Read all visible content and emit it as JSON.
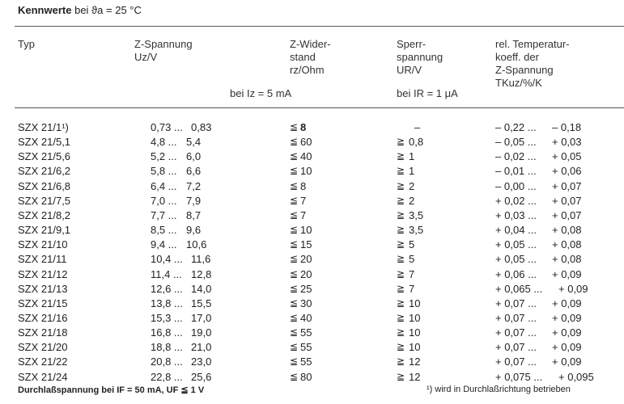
{
  "title": {
    "bold": "Kennwerte",
    "rest": "bei ϑa = 25 °C"
  },
  "headers": {
    "typ": "Typ",
    "uz": [
      "Z-Spannung",
      "Uz/V"
    ],
    "rz": [
      "Z-Wider-",
      "stand",
      "rz/Ohm"
    ],
    "ur": [
      "Sperr-",
      "spannung",
      "UR/V"
    ],
    "tk": [
      "rel. Temperatur-",
      "koeff. der",
      "Z-Spannung",
      "TKuz/%/K"
    ],
    "cond_iz": "bei Iz = 5 mA",
    "cond_ir": "bei IR = 1 μA"
  },
  "rows": [
    {
      "typ": "SZX 21/1¹)",
      "uz_min": "0,73 ...",
      "uz_max": "0,83",
      "rz_op": "≦",
      "rz": "8",
      "ur_op": "",
      "ur": "–",
      "tk_min": "– 0,22 ...",
      "tk_max": "– 0,18"
    },
    {
      "typ": "SZX 21/5,1",
      "uz_min": "4,8 ...",
      "uz_max": "5,4",
      "rz_op": "≦",
      "rz": "60",
      "ur_op": "≧",
      "ur": "0,8",
      "tk_min": "– 0,05 ...",
      "tk_max": "+ 0,03"
    },
    {
      "typ": "SZX 21/5,6",
      "uz_min": "5,2 ...",
      "uz_max": "6,0",
      "rz_op": "≦",
      "rz": "40",
      "ur_op": "≧",
      "ur": "1",
      "tk_min": "– 0,02 ...",
      "tk_max": "+ 0,05"
    },
    {
      "typ": "SZX 21/6,2",
      "uz_min": "5,8 ...",
      "uz_max": "6,6",
      "rz_op": "≦",
      "rz": "10",
      "ur_op": "≧",
      "ur": "1",
      "tk_min": "– 0,01 ...",
      "tk_max": "+ 0,06"
    },
    {
      "typ": "SZX 21/6,8",
      "uz_min": "6,4 ...",
      "uz_max": "7,2",
      "rz_op": "≦",
      "rz": "8",
      "ur_op": "≧",
      "ur": "2",
      "tk_min": "– 0,00 ...",
      "tk_max": "+ 0,07"
    },
    {
      "typ": "SZX 21/7,5",
      "uz_min": "7,0 ...",
      "uz_max": "7,9",
      "rz_op": "≦",
      "rz": "7",
      "ur_op": "≧",
      "ur": "2",
      "tk_min": "+ 0,02 ...",
      "tk_max": "+ 0,07"
    },
    {
      "typ": "SZX 21/8,2",
      "uz_min": "7,7 ...",
      "uz_max": "8,7",
      "rz_op": "≦",
      "rz": "7",
      "ur_op": "≧",
      "ur": "3,5",
      "tk_min": "+ 0,03 ...",
      "tk_max": "+ 0,07"
    },
    {
      "typ": "SZX 21/9,1",
      "uz_min": "8,5 ...",
      "uz_max": "9,6",
      "rz_op": "≦",
      "rz": "10",
      "ur_op": "≧",
      "ur": "3,5",
      "tk_min": "+ 0,04 ...",
      "tk_max": "+ 0,08"
    },
    {
      "typ": "SZX 21/10",
      "uz_min": "9,4 ...",
      "uz_max": "10,6",
      "rz_op": "≦",
      "rz": "15",
      "ur_op": "≧",
      "ur": "5",
      "tk_min": "+ 0,05 ...",
      "tk_max": "+ 0,08"
    },
    {
      "typ": "SZX 21/11",
      "uz_min": "10,4 ...",
      "uz_max": "11,6",
      "rz_op": "≦",
      "rz": "20",
      "ur_op": "≧",
      "ur": "5",
      "tk_min": "+ 0,05 ...",
      "tk_max": "+ 0,08"
    },
    {
      "typ": "SZX 21/12",
      "uz_min": "11,4 ...",
      "uz_max": "12,8",
      "rz_op": "≦",
      "rz": "20",
      "ur_op": "≧",
      "ur": "7",
      "tk_min": "+ 0,06 ...",
      "tk_max": "+ 0,09"
    },
    {
      "typ": "SZX 21/13",
      "uz_min": "12,6 ...",
      "uz_max": "14,0",
      "rz_op": "≦",
      "rz": "25",
      "ur_op": "≧",
      "ur": "7",
      "tk_min": "+ 0,065 ...",
      "tk_max": "+ 0,09"
    },
    {
      "typ": "SZX 21/15",
      "uz_min": "13,8 ...",
      "uz_max": "15,5",
      "rz_op": "≦",
      "rz": "30",
      "ur_op": "≧",
      "ur": "10",
      "tk_min": "+ 0,07 ...",
      "tk_max": "+ 0,09"
    },
    {
      "typ": "SZX 21/16",
      "uz_min": "15,3 ...",
      "uz_max": "17,0",
      "rz_op": "≦",
      "rz": "40",
      "ur_op": "≧",
      "ur": "10",
      "tk_min": "+ 0,07 ...",
      "tk_max": "+ 0,09"
    },
    {
      "typ": "SZX 21/18",
      "uz_min": "16,8 ...",
      "uz_max": "19,0",
      "rz_op": "≦",
      "rz": "55",
      "ur_op": "≧",
      "ur": "10",
      "tk_min": "+ 0,07 ...",
      "tk_max": "+ 0,09"
    },
    {
      "typ": "SZX 21/20",
      "uz_min": "18,8 ...",
      "uz_max": "21,0",
      "rz_op": "≦",
      "rz": "55",
      "ur_op": "≧",
      "ur": "10",
      "tk_min": "+ 0,07 ...",
      "tk_max": "+ 0,09"
    },
    {
      "typ": "SZX 21/22",
      "uz_min": "20,8 ...",
      "uz_max": "23,0",
      "rz_op": "≦",
      "rz": "55",
      "ur_op": "≧",
      "ur": "12",
      "tk_min": "+ 0,07 ...",
      "tk_max": "+ 0,09"
    },
    {
      "typ": "SZX 21/24",
      "uz_min": "22,8 ...",
      "uz_max": "25,6",
      "rz_op": "≦",
      "rz": "80",
      "ur_op": "≧",
      "ur": "12",
      "tk_min": "+ 0,075 ...",
      "tk_max": "+ 0,095"
    }
  ],
  "footer": {
    "left": "Durchlaßspannung bei IF = 50 mA, UF ≦ 1 V",
    "right": "¹) wird in Durchlaßrichtung betrieben"
  }
}
